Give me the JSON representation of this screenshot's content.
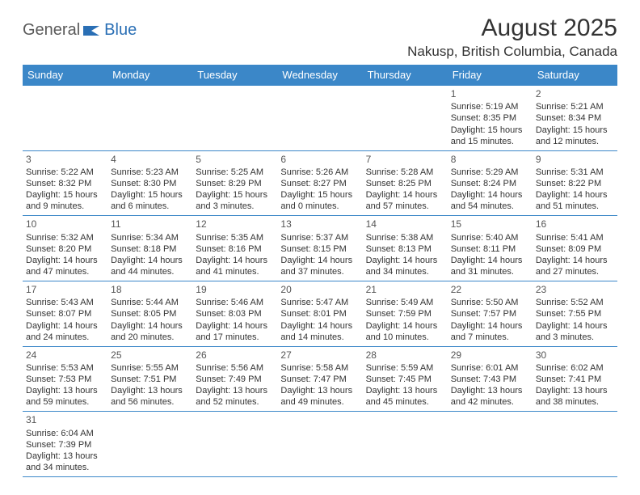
{
  "logo": {
    "part1": "General",
    "part2": "Blue"
  },
  "title": "August 2025",
  "location": "Nakusp, British Columbia, Canada",
  "colors": {
    "header_bg": "#3b87c8",
    "header_text": "#ffffff",
    "cell_border": "#3b87c8",
    "text": "#333333",
    "logo_gray": "#5a5a5a",
    "logo_blue": "#2a6fb5",
    "background": "#ffffff"
  },
  "dayHeaders": [
    "Sunday",
    "Monday",
    "Tuesday",
    "Wednesday",
    "Thursday",
    "Friday",
    "Saturday"
  ],
  "weeks": [
    [
      null,
      null,
      null,
      null,
      null,
      {
        "day": "1",
        "sunrise": "Sunrise: 5:19 AM",
        "sunset": "Sunset: 8:35 PM",
        "daylight": "Daylight: 15 hours and 15 minutes."
      },
      {
        "day": "2",
        "sunrise": "Sunrise: 5:21 AM",
        "sunset": "Sunset: 8:34 PM",
        "daylight": "Daylight: 15 hours and 12 minutes."
      }
    ],
    [
      {
        "day": "3",
        "sunrise": "Sunrise: 5:22 AM",
        "sunset": "Sunset: 8:32 PM",
        "daylight": "Daylight: 15 hours and 9 minutes."
      },
      {
        "day": "4",
        "sunrise": "Sunrise: 5:23 AM",
        "sunset": "Sunset: 8:30 PM",
        "daylight": "Daylight: 15 hours and 6 minutes."
      },
      {
        "day": "5",
        "sunrise": "Sunrise: 5:25 AM",
        "sunset": "Sunset: 8:29 PM",
        "daylight": "Daylight: 15 hours and 3 minutes."
      },
      {
        "day": "6",
        "sunrise": "Sunrise: 5:26 AM",
        "sunset": "Sunset: 8:27 PM",
        "daylight": "Daylight: 15 hours and 0 minutes."
      },
      {
        "day": "7",
        "sunrise": "Sunrise: 5:28 AM",
        "sunset": "Sunset: 8:25 PM",
        "daylight": "Daylight: 14 hours and 57 minutes."
      },
      {
        "day": "8",
        "sunrise": "Sunrise: 5:29 AM",
        "sunset": "Sunset: 8:24 PM",
        "daylight": "Daylight: 14 hours and 54 minutes."
      },
      {
        "day": "9",
        "sunrise": "Sunrise: 5:31 AM",
        "sunset": "Sunset: 8:22 PM",
        "daylight": "Daylight: 14 hours and 51 minutes."
      }
    ],
    [
      {
        "day": "10",
        "sunrise": "Sunrise: 5:32 AM",
        "sunset": "Sunset: 8:20 PM",
        "daylight": "Daylight: 14 hours and 47 minutes."
      },
      {
        "day": "11",
        "sunrise": "Sunrise: 5:34 AM",
        "sunset": "Sunset: 8:18 PM",
        "daylight": "Daylight: 14 hours and 44 minutes."
      },
      {
        "day": "12",
        "sunrise": "Sunrise: 5:35 AM",
        "sunset": "Sunset: 8:16 PM",
        "daylight": "Daylight: 14 hours and 41 minutes."
      },
      {
        "day": "13",
        "sunrise": "Sunrise: 5:37 AM",
        "sunset": "Sunset: 8:15 PM",
        "daylight": "Daylight: 14 hours and 37 minutes."
      },
      {
        "day": "14",
        "sunrise": "Sunrise: 5:38 AM",
        "sunset": "Sunset: 8:13 PM",
        "daylight": "Daylight: 14 hours and 34 minutes."
      },
      {
        "day": "15",
        "sunrise": "Sunrise: 5:40 AM",
        "sunset": "Sunset: 8:11 PM",
        "daylight": "Daylight: 14 hours and 31 minutes."
      },
      {
        "day": "16",
        "sunrise": "Sunrise: 5:41 AM",
        "sunset": "Sunset: 8:09 PM",
        "daylight": "Daylight: 14 hours and 27 minutes."
      }
    ],
    [
      {
        "day": "17",
        "sunrise": "Sunrise: 5:43 AM",
        "sunset": "Sunset: 8:07 PM",
        "daylight": "Daylight: 14 hours and 24 minutes."
      },
      {
        "day": "18",
        "sunrise": "Sunrise: 5:44 AM",
        "sunset": "Sunset: 8:05 PM",
        "daylight": "Daylight: 14 hours and 20 minutes."
      },
      {
        "day": "19",
        "sunrise": "Sunrise: 5:46 AM",
        "sunset": "Sunset: 8:03 PM",
        "daylight": "Daylight: 14 hours and 17 minutes."
      },
      {
        "day": "20",
        "sunrise": "Sunrise: 5:47 AM",
        "sunset": "Sunset: 8:01 PM",
        "daylight": "Daylight: 14 hours and 14 minutes."
      },
      {
        "day": "21",
        "sunrise": "Sunrise: 5:49 AM",
        "sunset": "Sunset: 7:59 PM",
        "daylight": "Daylight: 14 hours and 10 minutes."
      },
      {
        "day": "22",
        "sunrise": "Sunrise: 5:50 AM",
        "sunset": "Sunset: 7:57 PM",
        "daylight": "Daylight: 14 hours and 7 minutes."
      },
      {
        "day": "23",
        "sunrise": "Sunrise: 5:52 AM",
        "sunset": "Sunset: 7:55 PM",
        "daylight": "Daylight: 14 hours and 3 minutes."
      }
    ],
    [
      {
        "day": "24",
        "sunrise": "Sunrise: 5:53 AM",
        "sunset": "Sunset: 7:53 PM",
        "daylight": "Daylight: 13 hours and 59 minutes."
      },
      {
        "day": "25",
        "sunrise": "Sunrise: 5:55 AM",
        "sunset": "Sunset: 7:51 PM",
        "daylight": "Daylight: 13 hours and 56 minutes."
      },
      {
        "day": "26",
        "sunrise": "Sunrise: 5:56 AM",
        "sunset": "Sunset: 7:49 PM",
        "daylight": "Daylight: 13 hours and 52 minutes."
      },
      {
        "day": "27",
        "sunrise": "Sunrise: 5:58 AM",
        "sunset": "Sunset: 7:47 PM",
        "daylight": "Daylight: 13 hours and 49 minutes."
      },
      {
        "day": "28",
        "sunrise": "Sunrise: 5:59 AM",
        "sunset": "Sunset: 7:45 PM",
        "daylight": "Daylight: 13 hours and 45 minutes."
      },
      {
        "day": "29",
        "sunrise": "Sunrise: 6:01 AM",
        "sunset": "Sunset: 7:43 PM",
        "daylight": "Daylight: 13 hours and 42 minutes."
      },
      {
        "day": "30",
        "sunrise": "Sunrise: 6:02 AM",
        "sunset": "Sunset: 7:41 PM",
        "daylight": "Daylight: 13 hours and 38 minutes."
      }
    ],
    [
      {
        "day": "31",
        "sunrise": "Sunrise: 6:04 AM",
        "sunset": "Sunset: 7:39 PM",
        "daylight": "Daylight: 13 hours and 34 minutes."
      },
      null,
      null,
      null,
      null,
      null,
      null
    ]
  ]
}
